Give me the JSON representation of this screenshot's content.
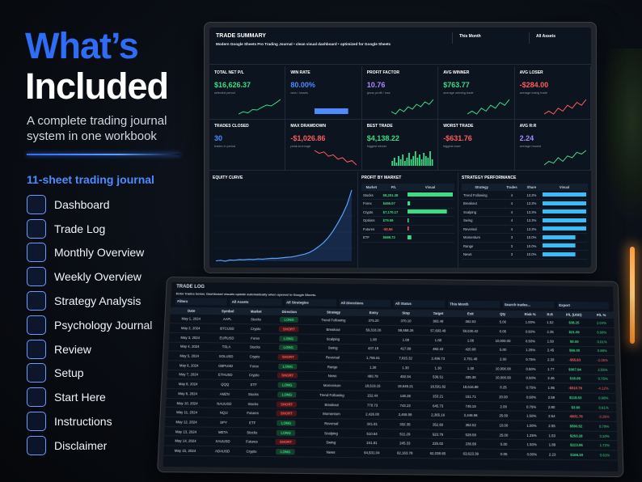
{
  "hero": {
    "title_line1": "What’s",
    "title_line2": "Included",
    "subtitle": "A complete trading journal system in one workbook",
    "section": "11-sheet trading journal",
    "items": [
      "Dashboard",
      "Trade Log",
      "Monthly Overview",
      "Weekly Overview",
      "Strategy Analysis",
      "Psychology Journal",
      "Review",
      "Setup",
      "Start Here",
      "Instructions",
      "Disclaimer"
    ]
  },
  "dashboard": {
    "title": "TRADE SUMMARY",
    "period": "This Month",
    "asset_filter": "All Assets",
    "subtitle": "Modern Google Sheets Pro Trading Journal • clean visual dashboard • optimized for Google Sheets",
    "kpis": [
      {
        "label": "TOTAL NET P/L",
        "value": "$16,626.37",
        "note": "selected period",
        "color": "#3ddc84",
        "spark": [
          2,
          3,
          2.5,
          4,
          3.8,
          5,
          6,
          5.6,
          7,
          8.5
        ]
      },
      {
        "label": "WIN RATE",
        "value": "80.00%",
        "note": "wins / losses",
        "color": "#4d8bff",
        "bar": 80
      },
      {
        "label": "PROFIT FACTOR",
        "value": "10.76",
        "note": "gross profit / loss",
        "color": "#a78bfa",
        "spark": [
          3,
          2,
          4,
          3,
          5,
          4,
          6,
          5,
          7,
          6,
          8
        ]
      },
      {
        "label": "AVG WINNER",
        "value": "$763.77",
        "note": "average winning trade",
        "color": "#3ddc84",
        "spark": [
          4,
          5,
          4,
          6,
          5,
          7,
          6,
          8,
          7,
          9
        ]
      },
      {
        "label": "AVG LOSER",
        "value": "-$284.00",
        "note": "average losing trade",
        "color": "#ff5c5c",
        "spark": [
          3,
          4,
          3,
          5,
          4,
          6,
          5,
          7,
          6,
          8
        ]
      },
      {
        "label": "TRADES CLOSED",
        "value": "30",
        "note": "trades in period",
        "color": "#4d8bff"
      },
      {
        "label": "MAX DRAWDOWN",
        "value": "-$1,026.86",
        "note": "peak-to-trough",
        "color": "#ff5c5c",
        "spark": [
          8,
          7,
          7.5,
          6,
          6.5,
          5,
          5.5,
          4,
          4.5,
          3
        ]
      },
      {
        "label": "BEST TRADE",
        "value": "$4,138.22",
        "note": "biggest winner",
        "color": "#3ddc84",
        "spark_bars": [
          3,
          5,
          2,
          6,
          4,
          7,
          3,
          5,
          8,
          4,
          6,
          9,
          5,
          7,
          4,
          8,
          6,
          5,
          9,
          4
        ]
      },
      {
        "label": "WORST TRADE",
        "value": "-$631.76",
        "note": "biggest loser",
        "color": "#ff5c5c"
      },
      {
        "label": "AVG R:R",
        "value": "2.24",
        "note": "average reward",
        "color": "#a78bfa",
        "spark": [
          3,
          4,
          3.5,
          5,
          4,
          5.5,
          5,
          6.5,
          6,
          7
        ]
      }
    ],
    "equity_curve": {
      "title": "EQUITY CURVE",
      "values": [
        0,
        120,
        -80,
        200,
        150,
        300,
        250,
        380,
        320,
        450,
        400,
        520,
        610,
        580,
        700,
        820,
        900,
        1100,
        1350,
        1600,
        2000,
        2600,
        3400,
        4300,
        5500,
        7000,
        8800,
        10800,
        13200,
        16626.37
      ]
    },
    "profit_by_market": {
      "title": "PROFIT BY MARKET",
      "columns": [
        "Market",
        "P/L",
        "Visual"
      ],
      "markets": [
        "Stocks",
        "Forex",
        "Crypto",
        "Options",
        "Futures",
        "ETF"
      ],
      "labels": [
        "$8,251.38",
        "$466.07",
        "$7,170.17",
        "$79.59",
        "-$0.56",
        "$689.72"
      ],
      "values": [
        8251.38,
        466.07,
        7170.17,
        79.59,
        -0.56,
        689.72
      ]
    },
    "strategy_performance": {
      "title": "STRATEGY PERFORMANCE",
      "columns": [
        "Strategy",
        "Trades",
        "Share",
        "Visual"
      ],
      "strategies": [
        "Trend Following",
        "Breakout",
        "Scalping",
        "Swing",
        "Reversal",
        "Momentum",
        "Range",
        "News"
      ],
      "trades": [
        "4",
        "4",
        "4",
        "4",
        "4",
        "3",
        "3",
        "3"
      ],
      "labels": [
        "13.3%",
        "13.3%",
        "13.3%",
        "13.3%",
        "13.3%",
        "10.0%",
        "10.0%",
        "10.0%"
      ],
      "values": [
        13.3,
        13.3,
        13.3,
        13.3,
        13.3,
        10.0,
        10.0,
        10.0
      ]
    }
  },
  "trade_log": {
    "title": "TRADE LOG",
    "note": "Enter trades below. Dashboard visuals update automatically when opened in Google Sheets.",
    "filters": [
      "Filters",
      "All Assets",
      "All Strategies",
      "All Directions",
      "All Status",
      "This Month",
      "Search trades...",
      "Export"
    ],
    "columns": [
      "Date",
      "Symbol",
      "Market",
      "Direction",
      "Strategy",
      "Entry",
      "Stop",
      "Target",
      "Exit",
      "Qty",
      "Risk %",
      "R:R",
      "P/L (USD)",
      "P/L %"
    ],
    "rows": [
      [
        "May 1, 2024",
        "AAPL",
        "Stocks",
        "LONG",
        "Trend Following",
        "375.20",
        "370.10",
        "383.48",
        "382.93",
        "5.00",
        "1.00%",
        "1.52",
        "$38.25",
        "2.04%"
      ],
      [
        "May 2, 2024",
        "BTCUSD",
        "Crypto",
        "SHORT",
        "Breakout",
        "59,318.26",
        "59,658.26",
        "57,693.49",
        "59,636.42",
        "0.05",
        "0.60%",
        "2.35",
        "$21.09",
        "0.98%"
      ],
      [
        "May 3, 2024",
        "EURUSD",
        "Forex",
        "LONG",
        "Scalping",
        "1.08",
        "1.08",
        "1.08",
        "1.08",
        "10,000.00",
        "0.50%",
        "1.50",
        "$0.00",
        "0.01%"
      ],
      [
        "May 4, 2024",
        "TSLA",
        "Stocks",
        "LONG",
        "Swing",
        "437.18",
        "417.89",
        "482.22",
        "420.98",
        "5.00",
        "1.25%",
        "2.45",
        "$66.00",
        "0.98%"
      ],
      [
        "May 5, 2024",
        "SOLUSD",
        "Crypto",
        "SHORT",
        "Reversal",
        "1,755.61",
        "7,815.32",
        "2,496.73",
        "2,701.48",
        "2.00",
        "0.75%",
        "2.33",
        "-$55.83",
        "-2.06%"
      ],
      [
        "May 6, 2024",
        "GBPUSD",
        "Forex",
        "LONG",
        "Range",
        "1.30",
        "1.30",
        "1.30",
        "1.30",
        "10,000.00",
        "0.50%",
        "1.77",
        "$367.94",
        "2.55%"
      ],
      [
        "May 7, 2024",
        "ETHUSD",
        "Crypto",
        "SHORT",
        "News",
        "495.78",
        "492.94",
        "536.51",
        "435.36",
        "10,000.00",
        "0.50%",
        "2.46",
        "$18.08",
        "0.75%"
      ],
      [
        "May 8, 2024",
        "QQQ",
        "ETF",
        "LONG",
        "Momentum",
        "18,519.15",
        "19,649.21",
        "18,591.82",
        "18,616.88",
        "0.25",
        "0.75%",
        "1.95",
        "-$510.79",
        "-4.12%"
      ],
      [
        "May 9, 2024",
        "AMZN",
        "Stocks",
        "LONG",
        "Trend Following",
        "152.44",
        "148.28",
        "153.21",
        "151.71",
        "20.00",
        "0.60%",
        "2.59",
        "$118.53",
        "0.98%"
      ],
      [
        "May 10, 2024",
        "NAUUSD",
        "Stocks",
        "SHORT",
        "Breakout",
        "770.73",
        "743.23",
        "645.73",
        "745.16",
        "2.00",
        "0.75%",
        "2.80",
        "$3.60",
        "0.61%"
      ],
      [
        "May 11, 2024",
        "NQ1!",
        "Futures",
        "SHORT",
        "Momentum",
        "2,426.00",
        "2,469.99",
        "2,365.16",
        "2,446.96",
        "25.00",
        "1.50%",
        "2.54",
        "-$631.76",
        "-3.26%"
      ],
      [
        "May 12, 2024",
        "SPY",
        "ETF",
        "LONG",
        "Reversal",
        "341.81",
        "332.35",
        "352.60",
        "352.52",
        "10.00",
        "1.00%",
        "2.55",
        "$590.52",
        "0.79%"
      ],
      [
        "May 13, 2024",
        "META",
        "Stocks",
        "LONG",
        "Scalping",
        "510.64",
        "511.29",
        "523.79",
        "528.59",
        "25.00",
        "1.25%",
        "1.53",
        "$263.28",
        "3.10%"
      ],
      [
        "May 14, 2024",
        "XAUUSD",
        "Futures",
        "SHORT",
        "Swing",
        "241.81",
        "245.33",
        "225.02",
        "236.99",
        "5.00",
        "1.50%",
        "1.89",
        "$223.96",
        "1.72%"
      ],
      [
        "May 15, 2024",
        "ADAUSD",
        "Crypto",
        "LONG",
        "News",
        "64,531.04",
        "62,163.78",
        "62,038.65",
        "63,623.39",
        "0.05",
        "0.00%",
        "2.23",
        "$166.19",
        "0.61%"
      ]
    ]
  }
}
